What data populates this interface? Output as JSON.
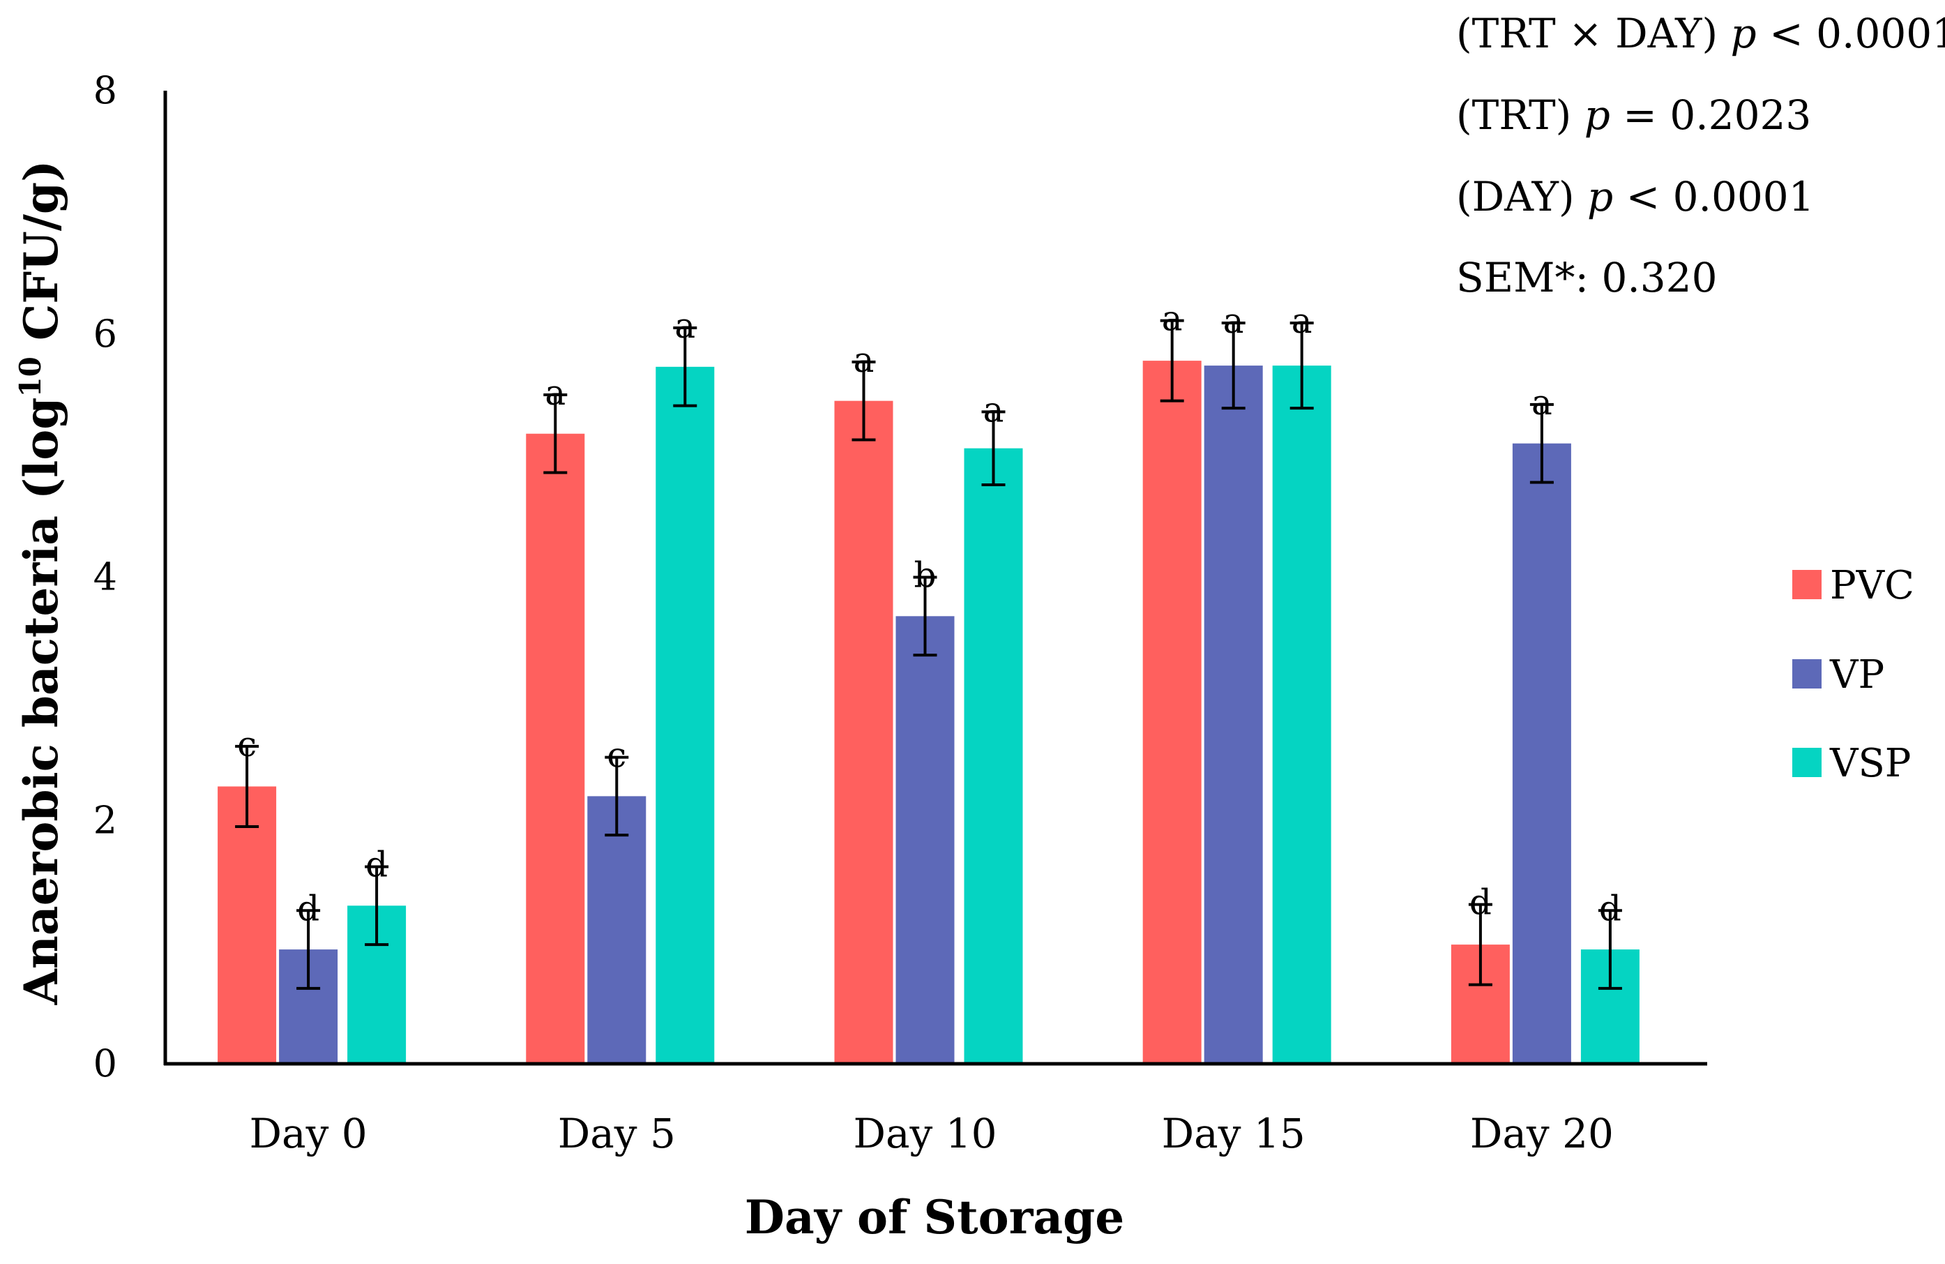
{
  "chart_data": {
    "type": "bar",
    "title": "",
    "xlabel": "Day of Storage",
    "ylabel": {
      "main": "Anaerobic bacteria (log",
      "superscript": "10",
      "tail": " CFU/g)"
    },
    "ylim": [
      0,
      8
    ],
    "yticks": [
      "0",
      "2",
      "4",
      "6",
      "8"
    ],
    "grid": false,
    "legend_position": "right",
    "categories": [
      "Day 0",
      "Day 5",
      "Day 10",
      "Day 15",
      "Day 20"
    ],
    "series": [
      {
        "name": "PVC",
        "color": "#FF605E",
        "values": [
          2.28,
          5.18,
          5.45,
          5.78,
          0.98
        ],
        "errors": [
          0.33,
          0.32,
          0.32,
          0.33,
          0.33
        ],
        "letters": [
          "c",
          "a",
          "a",
          "a",
          "d"
        ]
      },
      {
        "name": "VP",
        "color": "#5D69B8",
        "values": [
          0.94,
          2.2,
          3.68,
          5.74,
          5.1
        ],
        "errors": [
          0.32,
          0.32,
          0.32,
          0.35,
          0.32
        ],
        "letters": [
          "d",
          "c",
          "b",
          "a",
          "a"
        ]
      },
      {
        "name": "VSP",
        "color": "#05D4C2",
        "values": [
          1.3,
          5.73,
          5.06,
          5.74,
          0.94
        ],
        "errors": [
          0.32,
          0.32,
          0.3,
          0.35,
          0.32
        ],
        "letters": [
          "d",
          "a",
          "a",
          "a",
          "d"
        ]
      }
    ],
    "annotations": [
      {
        "prefix": "(TRT × DAY) ",
        "p": "p",
        "suffix": " < 0.0001"
      },
      {
        "prefix": "(TRT) ",
        "p": "p",
        "suffix": " = 0.2023"
      },
      {
        "prefix": "(DAY) ",
        "p": "p",
        "suffix": " < 0.0001"
      },
      {
        "prefix": "SEM*: 0.320",
        "p": "",
        "suffix": ""
      }
    ]
  }
}
